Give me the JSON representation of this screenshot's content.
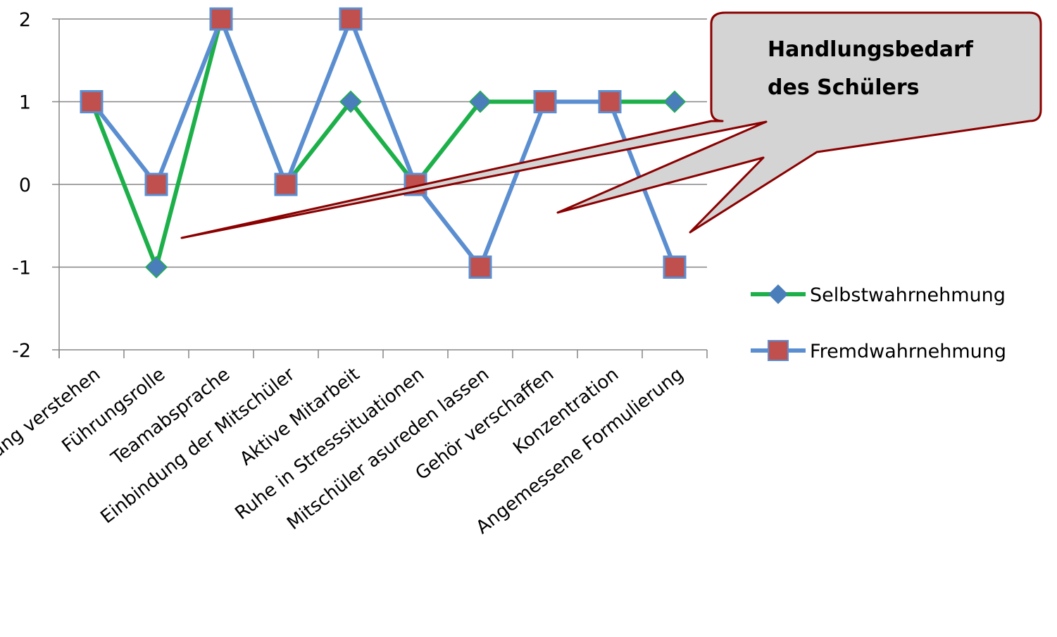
{
  "chart_data": {
    "type": "line",
    "categories": [
      "Aufgabenstellung verstehen",
      "Führungsrolle",
      "Teamabsprache",
      "Einbindung der Mitschüler",
      "Aktive Mitarbeit",
      "Ruhe in Stresssituationen",
      "Mitschüler asureden lassen",
      "Gehör verschaffen",
      "Konzentration",
      "Angemessene Formulierung"
    ],
    "series": [
      {
        "name": "Selbstwahrnehmung",
        "values": [
          1,
          -1,
          2,
          0,
          1,
          0,
          1,
          1,
          1,
          1
        ],
        "color": "#1db04a",
        "marker": "diamond",
        "marker_color": "#4a7ebb"
      },
      {
        "name": "Fremdwahrnehmung",
        "values": [
          1,
          0,
          2,
          0,
          2,
          0,
          -1,
          1,
          1,
          -1
        ],
        "color": "#5b8ed0",
        "marker": "square",
        "marker_color": "#c0504d"
      }
    ],
    "ylim": [
      -2,
      2
    ],
    "yticks": [
      "-2",
      "-1",
      "0",
      "1",
      "2"
    ],
    "grid": true,
    "legend_position": "right",
    "annotation": {
      "lines": [
        "Handlungsbedarf",
        "des Schülers"
      ],
      "fill": "#d4d4d4",
      "border": "#8b0000"
    }
  }
}
